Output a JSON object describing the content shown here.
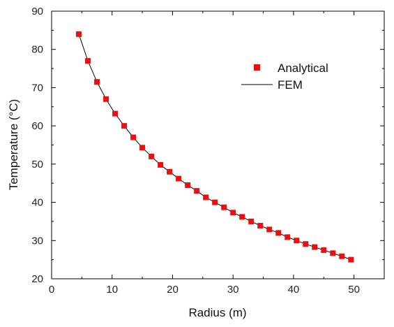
{
  "chart_data": {
    "type": "scatter",
    "xlabel": "Radius (m)",
    "ylabel": "Temperature (°C)",
    "xlim": [
      0,
      55
    ],
    "ylim": [
      20,
      90
    ],
    "x_ticks": [
      0,
      10,
      20,
      30,
      40,
      50
    ],
    "y_ticks": [
      20,
      30,
      40,
      50,
      60,
      70,
      80,
      90
    ],
    "x_minor_step": 5,
    "y_minor_step": 5,
    "grid": false,
    "legend_position": "top-right",
    "series": [
      {
        "name": "Analytical",
        "marker": "square",
        "color": "#e81010",
        "x": [
          4.5,
          6.0,
          7.5,
          9.0,
          10.5,
          12.0,
          13.5,
          15.0,
          16.5,
          18.0,
          19.5,
          21.0,
          22.5,
          24.0,
          25.5,
          27.0,
          28.5,
          30.0,
          31.5,
          33.0,
          34.5,
          36.0,
          37.5,
          39.0,
          40.5,
          42.0,
          43.5,
          45.0,
          46.5,
          48.0,
          49.5
        ],
        "y": [
          84.0,
          77.0,
          71.5,
          67.0,
          63.2,
          60.0,
          57.0,
          54.3,
          52.0,
          49.8,
          48.0,
          46.2,
          44.5,
          43.0,
          41.3,
          40.0,
          38.7,
          37.3,
          36.2,
          35.0,
          33.9,
          32.9,
          32.0,
          30.9,
          30.0,
          29.1,
          28.3,
          27.5,
          26.7,
          25.9,
          25.0
        ]
      },
      {
        "name": "FEM",
        "marker": "line",
        "color": "#000000",
        "x": [
          4.5,
          6.0,
          7.5,
          9.0,
          10.5,
          12.0,
          13.5,
          15.0,
          16.5,
          18.0,
          19.5,
          21.0,
          22.5,
          24.0,
          25.5,
          27.0,
          28.5,
          30.0,
          31.5,
          33.0,
          34.5,
          36.0,
          37.5,
          39.0,
          40.5,
          42.0,
          43.5,
          45.0,
          46.5,
          48.0,
          49.5
        ],
        "y": [
          84.0,
          77.0,
          71.5,
          67.0,
          63.2,
          60.0,
          57.0,
          54.3,
          52.0,
          49.8,
          48.0,
          46.2,
          44.5,
          43.0,
          41.3,
          40.0,
          38.7,
          37.3,
          36.2,
          35.0,
          33.9,
          32.9,
          32.0,
          30.9,
          30.0,
          29.1,
          28.3,
          27.5,
          26.7,
          25.9,
          25.0
        ]
      }
    ]
  }
}
